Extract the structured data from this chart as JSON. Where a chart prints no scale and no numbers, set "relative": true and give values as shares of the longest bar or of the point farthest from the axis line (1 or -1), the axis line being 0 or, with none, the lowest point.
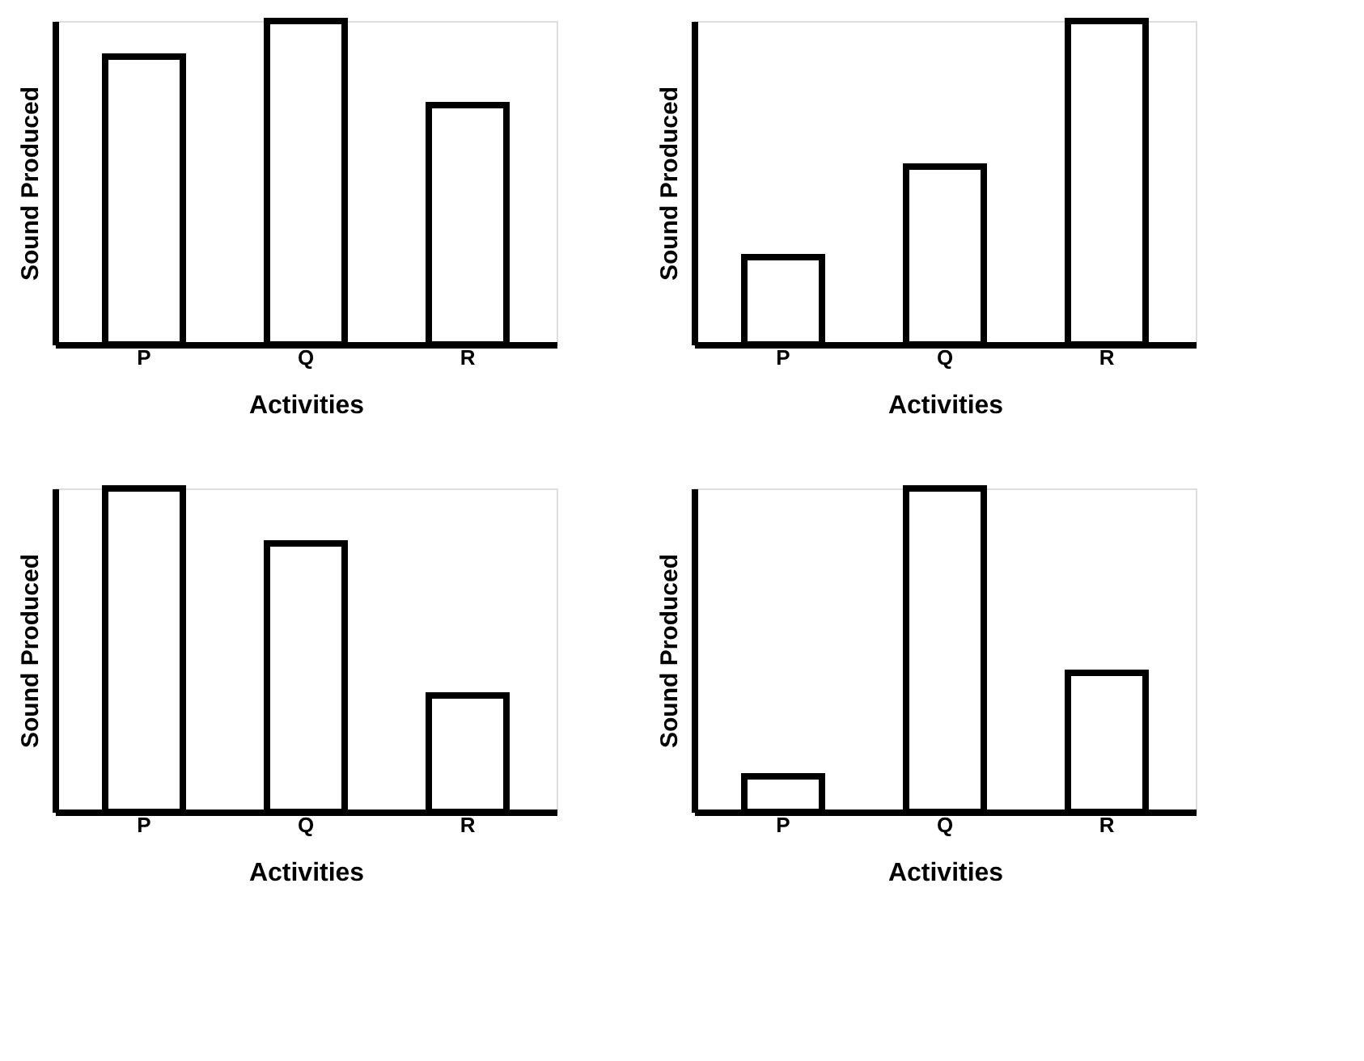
{
  "chart_data": [
    {
      "type": "bar",
      "relative": true,
      "categories": [
        "P",
        "Q",
        "R"
      ],
      "values": [
        0.89,
        1,
        0.74
      ],
      "color": "#ffffff",
      "xlabel": "Activities",
      "ylabel": "Sound Produced"
    },
    {
      "type": "bar",
      "relative": true,
      "categories": [
        "P",
        "Q",
        "R"
      ],
      "values": [
        0.27,
        0.55,
        1
      ],
      "color": "#ffffff",
      "xlabel": "Activities",
      "ylabel": "Sound Produced"
    },
    {
      "type": "bar",
      "relative": true,
      "categories": [
        "P",
        "Q",
        "R"
      ],
      "values": [
        1,
        0.83,
        0.36
      ],
      "color": "#ffffff",
      "xlabel": "Activities",
      "ylabel": "Sound Produced"
    },
    {
      "type": "bar",
      "relative": true,
      "categories": [
        "P",
        "Q",
        "R"
      ],
      "values": [
        0.11,
        1,
        0.43
      ],
      "color": "#ffffff",
      "xlabel": "Activities",
      "ylabel": "Sound Produced"
    }
  ]
}
